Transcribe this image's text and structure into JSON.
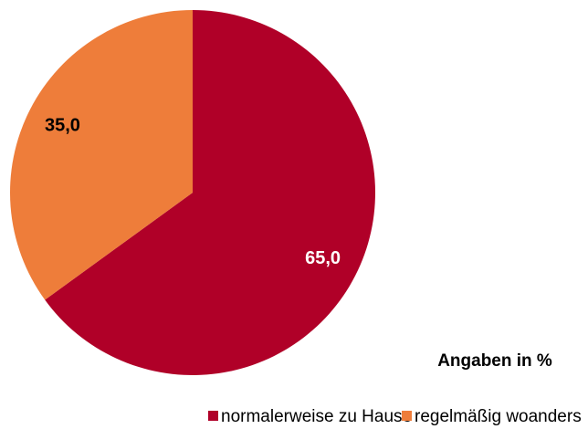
{
  "chart_data": {
    "type": "pie",
    "categories": [
      "normalerweise zu Hause",
      "regelmäßig woanders"
    ],
    "values": [
      65,
      35
    ],
    "value_labels": [
      "65,0",
      "35,0"
    ],
    "colors": [
      "#b00028",
      "#ee7d3a"
    ],
    "annotation": "Angaben in %",
    "legend": "bottom"
  }
}
